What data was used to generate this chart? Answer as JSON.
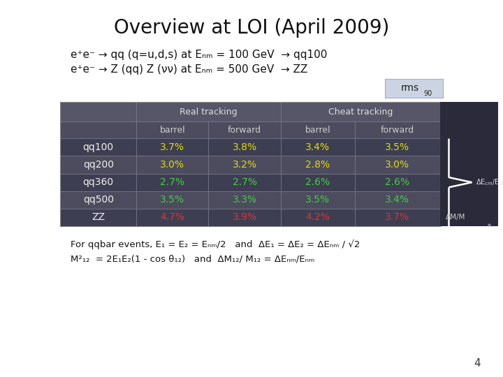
{
  "title": "Overview at LOI (April 2009)",
  "subtitle_line1": "e⁺e⁻ → qq (q=u,d,s) at Eₙₘ = 100 GeV  → qq100",
  "subtitle_line2": "e⁺e⁻ → Z (qq) Z (νν) at Eₙₘ = 500 GeV  → ZZ",
  "table": {
    "rows": [
      {
        "label": "qq100",
        "values": [
          "3.7%",
          "3.8%",
          "3.4%",
          "3.5%"
        ],
        "color": "#dddd00"
      },
      {
        "label": "qq200",
        "values": [
          "3.0%",
          "3.2%",
          "2.8%",
          "3.0%"
        ],
        "color": "#dddd00"
      },
      {
        "label": "qq360",
        "values": [
          "2.7%",
          "2.7%",
          "2.6%",
          "2.6%"
        ],
        "color": "#44cc44"
      },
      {
        "label": "qq500",
        "values": [
          "3.5%",
          "3.3%",
          "3.5%",
          "3.4%"
        ],
        "color": "#44cc44"
      },
      {
        "label": "ZZ",
        "values": [
          "4.7%",
          "3.9%",
          "4.2%",
          "3.7%"
        ],
        "color": "#dd3333"
      }
    ]
  },
  "footer_line1": "For qqbar events, E₁ = E₂ = Eₙₘ/2   and  ΔE₁ = ΔE₂ = ΔEₙₘ / √2",
  "footer_line2": "M²₁₂  = 2E₁E₂(1 - cos θ₁₂)   and  ΔM₁₂/ M₁₂ = ΔEₙₘ/Eₙₘ",
  "page_number": "4",
  "bg_color": "#ffffff"
}
